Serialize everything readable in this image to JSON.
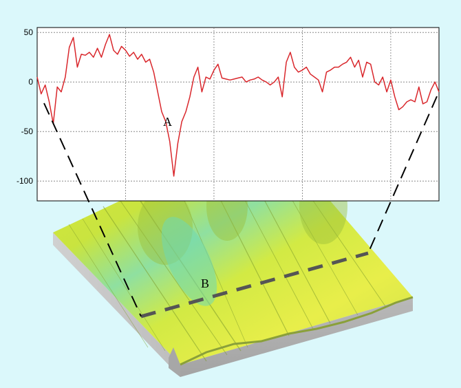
{
  "chart_data": {
    "type": "line",
    "title": "",
    "xlabel": "",
    "ylabel": "",
    "ylim": [
      -120,
      55
    ],
    "yticks": [
      50,
      0,
      -50,
      -100
    ],
    "ytick_labels": [
      "50",
      "0",
      "-50",
      "-100"
    ],
    "xlim": [
      0,
      1
    ],
    "grid": true,
    "series": [
      {
        "color": "#d9262b",
        "x": [
          0,
          0.01,
          0.02,
          0.03,
          0.04,
          0.05,
          0.06,
          0.07,
          0.08,
          0.09,
          0.1,
          0.11,
          0.12,
          0.13,
          0.14,
          0.15,
          0.16,
          0.17,
          0.18,
          0.19,
          0.2,
          0.21,
          0.22,
          0.23,
          0.24,
          0.25,
          0.26,
          0.27,
          0.28,
          0.29,
          0.3,
          0.31,
          0.32,
          0.33,
          0.34,
          0.35,
          0.36,
          0.37,
          0.38,
          0.39,
          0.4,
          0.41,
          0.42,
          0.43,
          0.44,
          0.45,
          0.46,
          0.47,
          0.48,
          0.49,
          0.5,
          0.51,
          0.52,
          0.53,
          0.54,
          0.55,
          0.56,
          0.57,
          0.58,
          0.59,
          0.6,
          0.61,
          0.62,
          0.63,
          0.64,
          0.65,
          0.66,
          0.67,
          0.68,
          0.69,
          0.7,
          0.71,
          0.72,
          0.73,
          0.74,
          0.75,
          0.76,
          0.77,
          0.78,
          0.79,
          0.8,
          0.81,
          0.82,
          0.83,
          0.84,
          0.85,
          0.86,
          0.87,
          0.88,
          0.89,
          0.9,
          0.91,
          0.92,
          0.93,
          0.94,
          0.95,
          0.96,
          0.97,
          0.98,
          0.99,
          1.0
        ],
        "values": [
          5,
          -12,
          -3,
          -20,
          -42,
          -5,
          -10,
          5,
          35,
          45,
          15,
          28,
          27,
          30,
          25,
          34,
          25,
          38,
          48,
          32,
          28,
          36,
          32,
          26,
          30,
          23,
          28,
          20,
          23,
          10,
          -10,
          -30,
          -40,
          -60,
          -95,
          -62,
          -40,
          -30,
          -15,
          5,
          15,
          -10,
          5,
          3,
          12,
          18,
          4,
          3,
          2,
          3,
          4,
          5,
          0,
          2,
          3,
          5,
          2,
          0,
          -3,
          0,
          5,
          -15,
          20,
          30,
          15,
          10,
          12,
          15,
          8,
          5,
          2,
          -10,
          10,
          12,
          15,
          15,
          18,
          20,
          25,
          15,
          22,
          5,
          20,
          18,
          0,
          -3,
          5,
          -10,
          2,
          -15,
          -28,
          -25,
          -20,
          -18,
          -20,
          -5,
          -22,
          -20,
          -8,
          0,
          -10
        ]
      }
    ],
    "annotations": [
      "A",
      "B"
    ]
  }
}
